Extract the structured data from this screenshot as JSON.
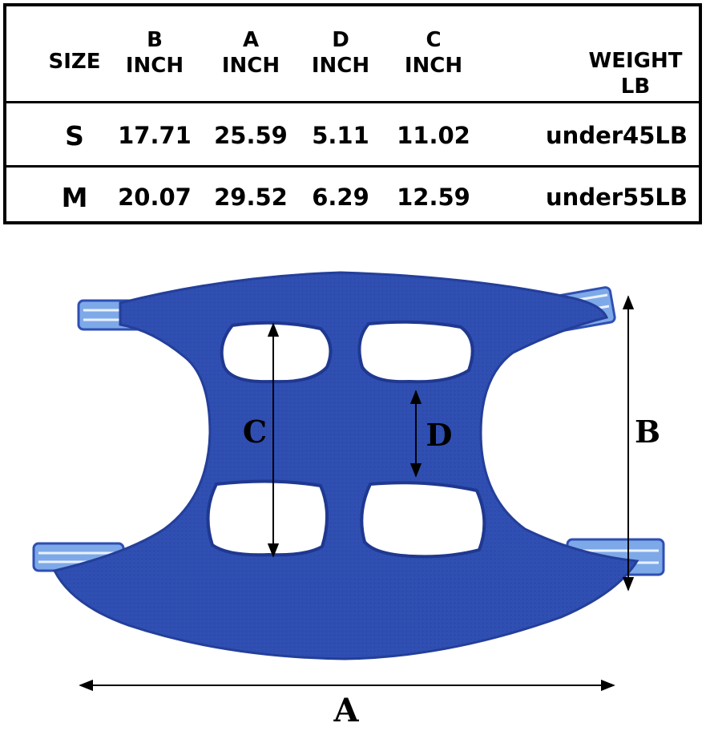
{
  "table": {
    "headers": [
      {
        "line1": "SIZE",
        "line2": ""
      },
      {
        "line1": "B",
        "line2": "INCH"
      },
      {
        "line1": "A",
        "line2": "INCH"
      },
      {
        "line1": "D",
        "line2": "INCH"
      },
      {
        "line1": "C",
        "line2": "INCH"
      },
      {
        "line1": "WEIGHT",
        "line2": "LB"
      }
    ],
    "rows": [
      {
        "size": "S",
        "b": "17.71",
        "a": "25.59",
        "d": "5.11",
        "c": "11.02",
        "weight": "under45LB"
      },
      {
        "size": "M",
        "b": "20.07",
        "a": "29.52",
        "d": "6.29",
        "c": "12.59",
        "weight": "under55LB"
      }
    ]
  },
  "diagram": {
    "labels": {
      "a": "A",
      "b": "B",
      "c": "C",
      "d": "D"
    },
    "colors": {
      "harness": "#2f4fb3",
      "harness_edge": "#243f9a",
      "strap": "#7ea9e8",
      "strap_stripe": "#e9f1ff"
    }
  }
}
